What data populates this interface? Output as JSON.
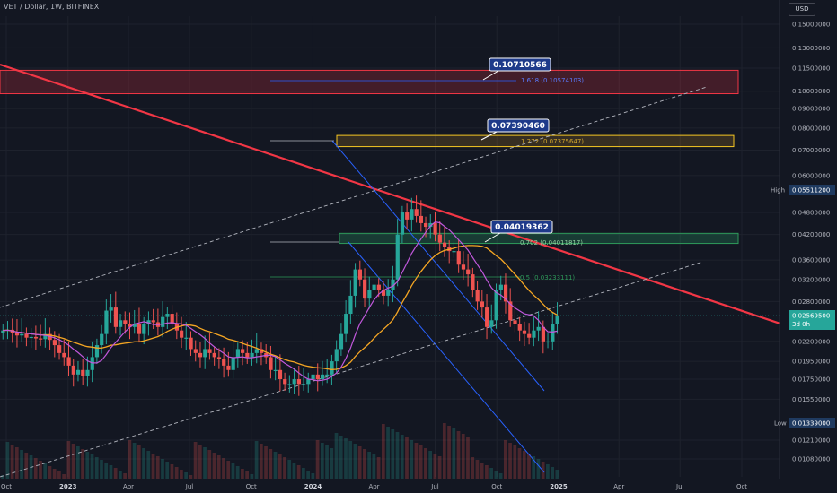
{
  "header": {
    "symbol": "VET / Dollar, 1W, BITFINEX",
    "currency_button": "USD"
  },
  "colors": {
    "background": "#131722",
    "grid": "#1e222d",
    "up": "#26a69a",
    "down": "#ef5350",
    "resistance": "#f23645",
    "ma_slow": "#f5a623",
    "ma_fast": "#c158dc",
    "channel": "#2962ff",
    "dashed": "#b2b5be",
    "fib": "#2962ff"
  },
  "chart_data": {
    "type": "candlestick",
    "price_axis": {
      "ticks": [
        "0.15000000",
        "0.13000000",
        "0.11500000",
        "0.10000000",
        "0.09000000",
        "0.08000000",
        "0.07000000",
        "0.06000000",
        "0.04800000",
        "0.04200000",
        "0.03600000",
        "0.03200000",
        "0.02800000",
        "0.02200000",
        "0.01950000",
        "0.01750000",
        "0.01550000",
        "0.01210000",
        "0.01080000"
      ],
      "tick_values": [
        0.15,
        0.13,
        0.115,
        0.1,
        0.09,
        0.08,
        0.07,
        0.06,
        0.048,
        0.042,
        0.036,
        0.032,
        0.028,
        0.022,
        0.0195,
        0.0175,
        0.0155,
        0.0121,
        0.0108
      ],
      "scale": "log"
    },
    "time_axis": {
      "labels": [
        "Oct",
        "2023",
        "Apr",
        "Jul",
        "Oct",
        "2024",
        "Apr",
        "Jul",
        "Oct",
        "2025",
        "Apr",
        "Jul",
        "Oct"
      ],
      "dates": [
        "2022-10-01",
        "2023-01-01",
        "2023-04-01",
        "2023-07-01",
        "2023-10-01",
        "2024-01-01",
        "2024-04-01",
        "2024-07-01",
        "2024-10-01",
        "2025-01-01",
        "2025-04-01",
        "2025-07-01",
        "2025-10-01"
      ]
    },
    "markers": {
      "high": {
        "label": "High",
        "value": "0.05511200"
      },
      "current": {
        "value": "0.02569500",
        "countdown": "3d 0h"
      },
      "low": {
        "label": "Low",
        "value": "0.01339000"
      }
    },
    "callouts": [
      "0.10710566",
      "0.07390460",
      "0.04019362"
    ],
    "fib_levels": [
      {
        "label": "1.618 (0.10574103)",
        "value": 0.10574103
      },
      {
        "label": "1.272 (0.07375647)",
        "value": 0.07375647
      },
      {
        "label": "0.702 (0.04011817)",
        "value": 0.04011817
      },
      {
        "label": "0.5 (0.03233111)",
        "value": 0.03233111
      }
    ],
    "closes": [
      0.0235,
      0.0236,
      0.0232,
      0.0228,
      0.023,
      0.0225,
      0.0226,
      0.0224,
      0.0223,
      0.023,
      0.0222,
      0.0215,
      0.0205,
      0.02,
      0.019,
      0.018,
      0.0185,
      0.0178,
      0.0185,
      0.02,
      0.0215,
      0.023,
      0.0265,
      0.027,
      0.024,
      0.025,
      0.0245,
      0.024,
      0.0245,
      0.023,
      0.0245,
      0.025,
      0.0247,
      0.024,
      0.0255,
      0.026,
      0.0245,
      0.0235,
      0.0225,
      0.0225,
      0.021,
      0.0205,
      0.02,
      0.021,
      0.0205,
      0.02,
      0.0198,
      0.019,
      0.0185,
      0.02,
      0.021,
      0.0205,
      0.02,
      0.0205,
      0.021,
      0.0205,
      0.02,
      0.0185,
      0.0185,
      0.0175,
      0.017,
      0.017,
      0.0175,
      0.017,
      0.017,
      0.0175,
      0.018,
      0.0175,
      0.018,
      0.018,
      0.0195,
      0.021,
      0.023,
      0.026,
      0.029,
      0.034,
      0.032,
      0.0285,
      0.03,
      0.031,
      0.03,
      0.029,
      0.03,
      0.032,
      0.042,
      0.048,
      0.046,
      0.049,
      0.047,
      0.045,
      0.044,
      0.045,
      0.042,
      0.04,
      0.039,
      0.038,
      0.038,
      0.035,
      0.034,
      0.033,
      0.03,
      0.028,
      0.027,
      0.024,
      0.025,
      0.03,
      0.031,
      0.028,
      0.025,
      0.0245,
      0.0235,
      0.023,
      0.0225,
      0.0235,
      0.024,
      0.022,
      0.022,
      0.0245,
      0.0257
    ]
  }
}
